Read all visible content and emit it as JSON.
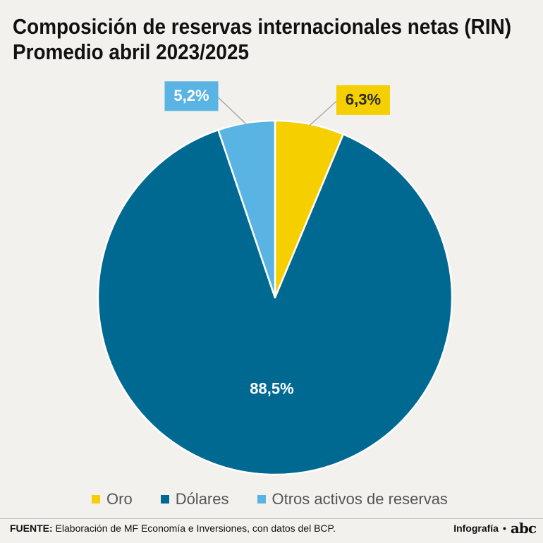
{
  "header": {
    "title_line1": "Composición de reservas internacionales netas (RIN)",
    "title_line2": "Promedio abril 2023/2025"
  },
  "chart_data": {
    "type": "pie",
    "slices": [
      {
        "name": "Oro",
        "value": 6.3,
        "label": "6,3%",
        "color": "#f5cf00",
        "label_style": "callout"
      },
      {
        "name": "Dólares",
        "value": 88.5,
        "label": "88,5%",
        "color": "#006992",
        "label_style": "inside"
      },
      {
        "name": "Otros activos de reservas",
        "value": 5.2,
        "label": "5,2%",
        "color": "#5ab4e3",
        "label_style": "callout"
      }
    ],
    "start": "top",
    "direction": "clockwise",
    "legend_position": "bottom"
  },
  "footer": {
    "source_label": "FUENTE:",
    "source_text": " Elaboración de MF Economía e Inversiones, con datos del BCP.",
    "credit": "Infografía",
    "dot": "•",
    "logo": "abc"
  }
}
